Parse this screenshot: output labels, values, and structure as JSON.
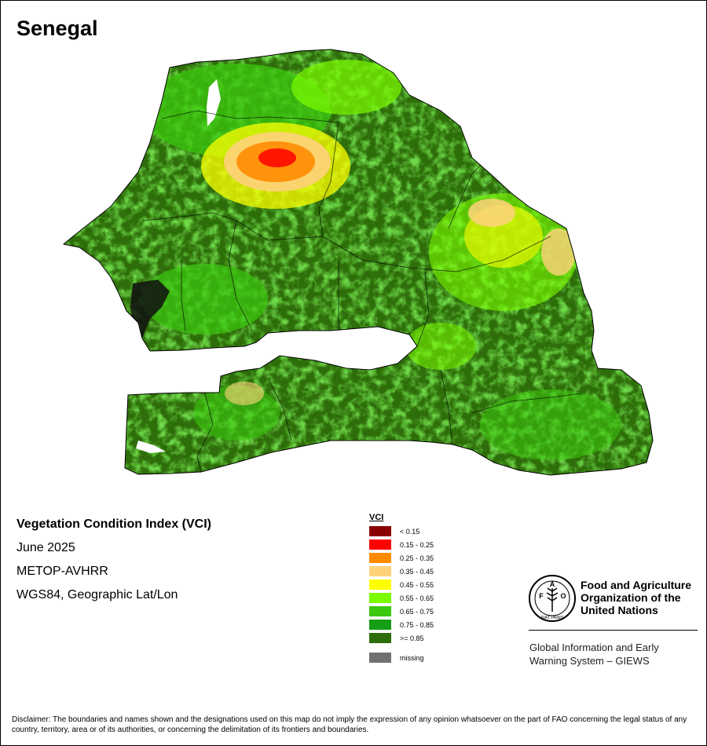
{
  "map": {
    "title": "Senegal",
    "info": {
      "index_name": "Vegetation Condition Index (VCI)",
      "period": "June 2025",
      "sensor": "METOP-AVHRR",
      "projection": "WGS84, Geographic Lat/Lon"
    },
    "legend": {
      "title": "VCI",
      "classes": [
        {
          "label": "< 0.15",
          "color": "#8b0000"
        },
        {
          "label": "0.15 - 0.25",
          "color": "#ff0000"
        },
        {
          "label": "0.25 - 0.35",
          "color": "#ff8c00"
        },
        {
          "label": "0.35 - 0.45",
          "color": "#ffd27a"
        },
        {
          "label": "0.45 - 0.55",
          "color": "#ffff00"
        },
        {
          "label": "0.55 - 0.65",
          "color": "#7cfc00"
        },
        {
          "label": "0.65 - 0.75",
          "color": "#3cc80f"
        },
        {
          "label": "0.75 - 0.85",
          "color": "#159e15"
        },
        {
          "label": ">= 0.85",
          "color": "#2e6e0a"
        }
      ],
      "missing": {
        "label": "missing",
        "color": "#707070"
      }
    },
    "branding": {
      "org_name": "Food and Agriculture Organization of the United Nations",
      "system_name": "Global Information and Early Warning System – GIEWS",
      "logo_letters": "FAO",
      "logo_motto": "FIAT PANIS",
      "logo_icon": "fao-wheat-emblem-icon"
    },
    "disclaimer": "Disclaimer: The boundaries and names shown and the designations used on this map do not imply the expression of any opinion whatsoever on the part of FAO concerning the legal status of any country, territory, area or of its authorities, or concerning the delimitation of its frontiers and boundaries."
  }
}
